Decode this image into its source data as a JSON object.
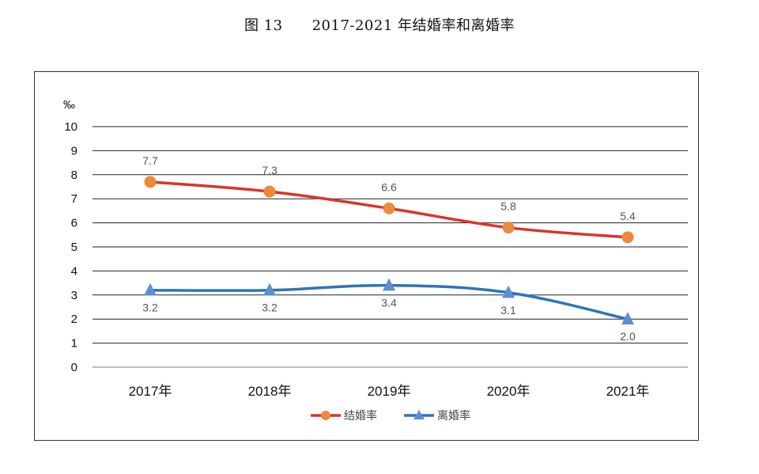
{
  "chart_data": {
    "type": "line",
    "title": "图 13　　2017-2021 年结婚率和离婚率",
    "ylabel": "‰",
    "xlabel": "",
    "ylim": [
      0,
      10
    ],
    "yticks": [
      0,
      1,
      2,
      3,
      4,
      5,
      6,
      7,
      8,
      9,
      10
    ],
    "categories": [
      "2017年",
      "2018年",
      "2019年",
      "2020年",
      "2021年"
    ],
    "series": [
      {
        "name": "结婚率",
        "values": [
          7.7,
          7.3,
          6.6,
          5.8,
          5.4
        ],
        "labels": [
          "7.7",
          "7.3",
          "6.6",
          "5.8",
          "5.4"
        ],
        "color": "#d9342b",
        "marker": "circle",
        "marker_color": "#ec8a3a"
      },
      {
        "name": "离婚率",
        "values": [
          3.2,
          3.2,
          3.4,
          3.1,
          2.0
        ],
        "labels": [
          "3.2",
          "3.2",
          "3.4",
          "3.1",
          "2.0"
        ],
        "color": "#2e75b6",
        "marker": "triangle",
        "marker_color": "#5b8fd0"
      }
    ],
    "grid": true,
    "legend": "bottom"
  }
}
